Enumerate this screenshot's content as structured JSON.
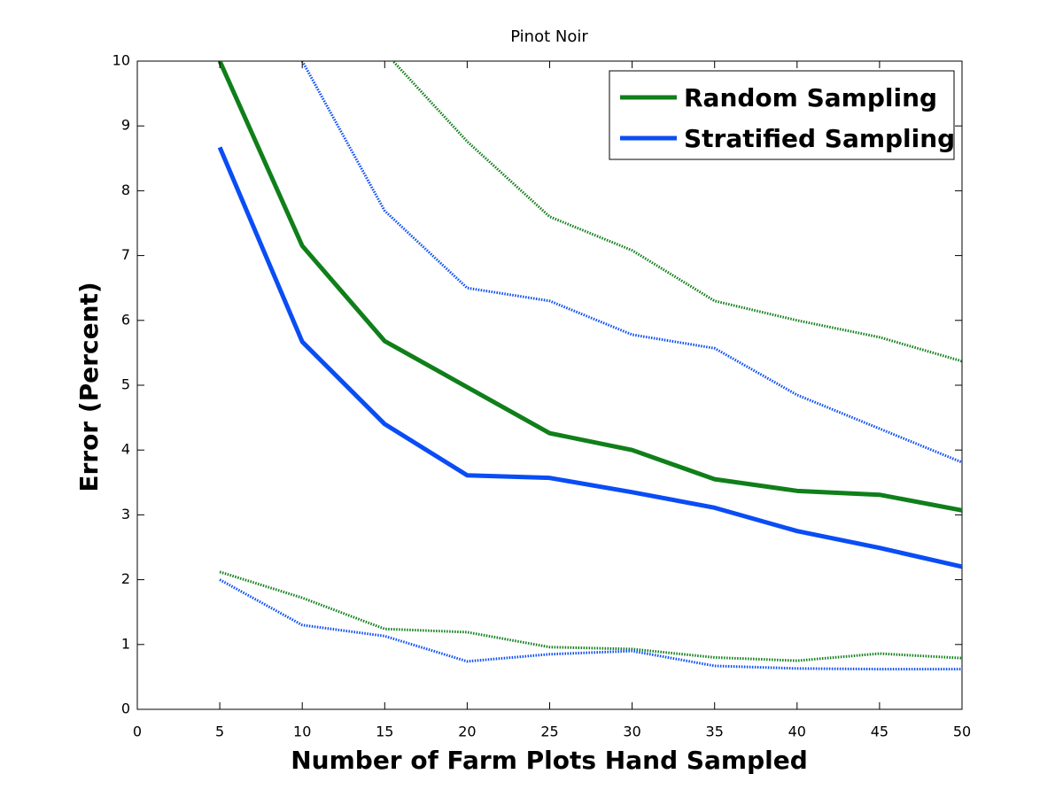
{
  "chart_data": {
    "type": "line",
    "title": "Pinot Noir",
    "x_label": "Number of Farm Plots Hand Sampled",
    "y_label": "Error (Percent)",
    "x": [
      5,
      10,
      15,
      20,
      25,
      30,
      35,
      40,
      45,
      50
    ],
    "series": [
      {
        "name": "Random Sampling",
        "color": "#107f1a",
        "style": "solid",
        "values": [
          10.0,
          7.15,
          5.68,
          4.97,
          4.26,
          4.0,
          3.55,
          3.37,
          3.31,
          3.07
        ]
      },
      {
        "name": "Stratified Sampling",
        "color": "#0a4df5",
        "style": "solid",
        "values": [
          8.67,
          5.67,
          4.4,
          3.61,
          3.57,
          3.35,
          3.11,
          2.75,
          2.49,
          2.2
        ]
      },
      {
        "color": "#107f1a",
        "style": "dotted",
        "values": [
          null,
          null,
          10.14,
          8.76,
          7.6,
          7.08,
          6.3,
          6.0,
          5.74,
          5.37
        ]
      },
      {
        "color": "#0a4df5",
        "style": "dotted",
        "values": [
          null,
          10.0,
          7.69,
          6.5,
          6.3,
          5.78,
          5.57,
          4.85,
          4.33,
          3.81
        ]
      },
      {
        "color": "#107f1a",
        "style": "dotted",
        "values": [
          2.12,
          1.72,
          1.24,
          1.19,
          0.96,
          0.93,
          0.8,
          0.75,
          0.86,
          0.79
        ]
      },
      {
        "color": "#0a4df5",
        "style": "dotted",
        "values": [
          2.0,
          1.3,
          1.13,
          0.74,
          0.85,
          0.9,
          0.67,
          0.63,
          0.62,
          0.62
        ]
      }
    ],
    "xlim": [
      0,
      50
    ],
    "xticks": [
      0,
      5,
      10,
      15,
      20,
      25,
      30,
      35,
      40,
      45,
      50
    ],
    "ylim": [
      0,
      10
    ],
    "yticks": [
      0,
      1,
      2,
      3,
      4,
      5,
      6,
      7,
      8,
      9,
      10
    ],
    "grid": false,
    "legend": "upper right"
  }
}
